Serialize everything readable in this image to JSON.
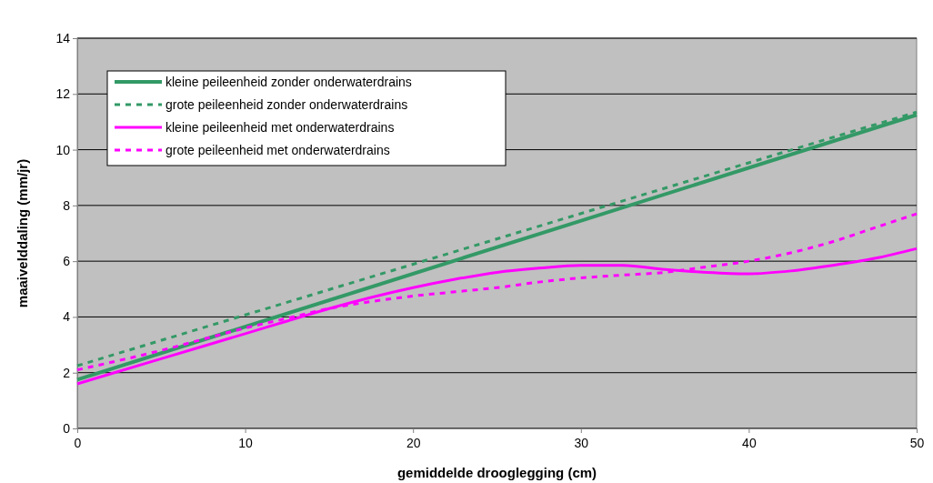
{
  "chart_data": {
    "type": "line",
    "xlabel": "gemiddelde drooglegging (cm)",
    "ylabel": "maaivelddaling (mm/jr)",
    "xlim": [
      0,
      50
    ],
    "xticks": [
      0,
      10,
      20,
      30,
      40,
      50
    ],
    "ylim": [
      0,
      14
    ],
    "yticks": [
      0,
      2,
      4,
      6,
      8,
      10,
      12,
      14
    ],
    "grid": "y",
    "legend": "top left",
    "marker": "none",
    "series": [
      {
        "name": "kleine peileenheid zonder onderwaterdrains",
        "color": "#339966",
        "line_style": "solid",
        "x": [
          0,
          50
        ],
        "values": [
          1.75,
          11.25
        ]
      },
      {
        "name": "grote peileenheid zonder onderwaterdrains",
        "color": "#339966",
        "line_style": "dotted",
        "x": [
          0,
          50
        ],
        "values": [
          2.25,
          11.35
        ]
      },
      {
        "name": "kleine peileenheid met onderwaterdrains",
        "color": "#ff00ff",
        "line_style": "solid",
        "x": [
          0,
          5,
          10,
          12.5,
          15,
          17.5,
          20,
          22.5,
          25,
          27.5,
          30,
          32.5,
          35,
          37.5,
          40,
          42.5,
          45,
          47.5,
          50
        ],
        "values": [
          1.6,
          2.5,
          3.4,
          3.85,
          4.3,
          4.7,
          5.05,
          5.35,
          5.6,
          5.75,
          5.85,
          5.85,
          5.7,
          5.6,
          5.55,
          5.65,
          5.85,
          6.1,
          6.45
        ]
      },
      {
        "name": "grote peileenheid met onderwaterdrains",
        "color": "#ff00ff",
        "line_style": "dotted",
        "x": [
          0,
          5,
          7.5,
          10,
          12.5,
          15,
          17.5,
          20,
          22.5,
          25,
          27.5,
          30,
          32.5,
          35,
          37.5,
          40,
          42.5,
          45,
          47.5,
          50
        ],
        "values": [
          2.1,
          2.8,
          3.2,
          3.6,
          3.95,
          4.3,
          4.55,
          4.75,
          4.9,
          5.05,
          5.25,
          5.4,
          5.5,
          5.6,
          5.8,
          6.0,
          6.3,
          6.7,
          7.2,
          7.7
        ]
      }
    ]
  }
}
